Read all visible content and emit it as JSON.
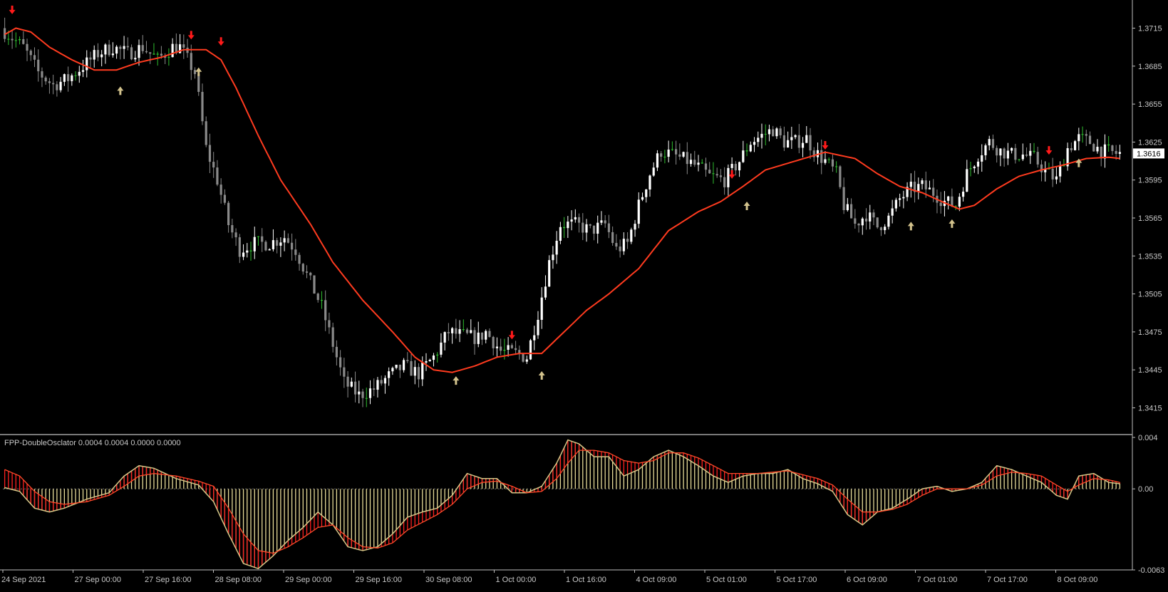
{
  "chart_data": [
    {
      "type": "candlestick",
      "ylim": [
        1.3395,
        1.3735
      ],
      "y_ticks": [
        "1.3715",
        "1.3685",
        "1.3655",
        "1.3625",
        "1.3595",
        "1.3565",
        "1.3535",
        "1.3505",
        "1.3475",
        "1.3445",
        "1.3415"
      ],
      "current_price": "1.3616",
      "x_labels": [
        "24 Sep 2021",
        "27 Sep 00:00",
        "27 Sep 16:00",
        "28 Sep 08:00",
        "29 Sep 00:00",
        "29 Sep 16:00",
        "30 Sep 08:00",
        "1 Oct 00:00",
        "1 Oct 16:00",
        "4 Oct 09:00",
        "5 Oct 01:00",
        "5 Oct 17:00",
        "6 Oct 09:00",
        "7 Oct 01:00",
        "7 Oct 17:00",
        "8 Oct 09:00"
      ],
      "price_path": [
        [
          0,
          1.3715
        ],
        [
          6,
          1.37
        ],
        [
          10,
          1.368
        ],
        [
          14,
          1.367
        ],
        [
          18,
          1.3675
        ],
        [
          22,
          1.3685
        ],
        [
          26,
          1.3695
        ],
        [
          30,
          1.37
        ],
        [
          34,
          1.3695
        ],
        [
          38,
          1.37
        ],
        [
          42,
          1.369
        ],
        [
          46,
          1.37
        ],
        [
          48,
          1.37
        ],
        [
          52,
          1.368
        ],
        [
          55,
          1.362
        ],
        [
          58,
          1.3595
        ],
        [
          61,
          1.356
        ],
        [
          64,
          1.354
        ],
        [
          68,
          1.3545
        ],
        [
          72,
          1.3545
        ],
        [
          76,
          1.355
        ],
        [
          79,
          1.354
        ],
        [
          82,
          1.352
        ],
        [
          86,
          1.3495
        ],
        [
          89,
          1.3465
        ],
        [
          92,
          1.3435
        ],
        [
          96,
          1.3425
        ],
        [
          100,
          1.343
        ],
        [
          104,
          1.344
        ],
        [
          108,
          1.3448
        ],
        [
          112,
          1.3442
        ],
        [
          116,
          1.3455
        ],
        [
          120,
          1.3475
        ],
        [
          124,
          1.3472
        ],
        [
          128,
          1.347
        ],
        [
          130,
          1.3475
        ],
        [
          134,
          1.346
        ],
        [
          138,
          1.3458
        ],
        [
          141,
          1.3455
        ],
        [
          144,
          1.349
        ],
        [
          147,
          1.353
        ],
        [
          150,
          1.356
        ],
        [
          154,
          1.356
        ],
        [
          158,
          1.3555
        ],
        [
          162,
          1.356
        ],
        [
          165,
          1.354
        ],
        [
          168,
          1.3545
        ],
        [
          171,
          1.3575
        ],
        [
          174,
          1.36
        ],
        [
          177,
          1.3618
        ],
        [
          180,
          1.3615
        ],
        [
          184,
          1.361
        ],
        [
          187,
          1.3605
        ],
        [
          190,
          1.3598
        ],
        [
          194,
          1.3595
        ],
        [
          198,
          1.361
        ],
        [
          201,
          1.3625
        ],
        [
          204,
          1.363
        ],
        [
          207,
          1.3635
        ],
        [
          210,
          1.3625
        ],
        [
          213,
          1.3625
        ],
        [
          216,
          1.3628
        ],
        [
          218,
          1.3618
        ],
        [
          221,
          1.361
        ],
        [
          224,
          1.36
        ],
        [
          226,
          1.3575
        ],
        [
          229,
          1.356
        ],
        [
          232,
          1.3568
        ],
        [
          235,
          1.3558
        ],
        [
          238,
          1.3565
        ],
        [
          241,
          1.358
        ],
        [
          244,
          1.3588
        ],
        [
          247,
          1.359
        ],
        [
          250,
          1.3585
        ],
        [
          253,
          1.3578
        ],
        [
          256,
          1.3575
        ],
        [
          259,
          1.36
        ],
        [
          262,
          1.3615
        ],
        [
          265,
          1.3625
        ],
        [
          268,
          1.3618
        ],
        [
          271,
          1.3615
        ],
        [
          274,
          1.3615
        ],
        [
          277,
          1.3612
        ],
        [
          280,
          1.3602
        ],
        [
          283,
          1.3595
        ],
        [
          286,
          1.362
        ],
        [
          289,
          1.3628
        ],
        [
          292,
          1.3625
        ],
        [
          295,
          1.3618
        ],
        [
          299,
          1.3616
        ]
      ],
      "ma_path": [
        [
          0,
          1.371
        ],
        [
          3,
          1.3715
        ],
        [
          7,
          1.3712
        ],
        [
          12,
          1.37
        ],
        [
          18,
          1.369
        ],
        [
          24,
          1.3682
        ],
        [
          30,
          1.3682
        ],
        [
          36,
          1.3688
        ],
        [
          42,
          1.3692
        ],
        [
          48,
          1.3698
        ],
        [
          54,
          1.3698
        ],
        [
          58,
          1.369
        ],
        [
          62,
          1.3668
        ],
        [
          68,
          1.363
        ],
        [
          74,
          1.3595
        ],
        [
          82,
          1.356
        ],
        [
          88,
          1.353
        ],
        [
          96,
          1.35
        ],
        [
          104,
          1.3475
        ],
        [
          110,
          1.3455
        ],
        [
          115,
          1.3445
        ],
        [
          120,
          1.3443
        ],
        [
          126,
          1.3448
        ],
        [
          132,
          1.3455
        ],
        [
          138,
          1.3458
        ],
        [
          144,
          1.3458
        ],
        [
          150,
          1.3475
        ],
        [
          156,
          1.3492
        ],
        [
          162,
          1.3505
        ],
        [
          170,
          1.3525
        ],
        [
          178,
          1.3555
        ],
        [
          186,
          1.357
        ],
        [
          192,
          1.3578
        ],
        [
          198,
          1.359
        ],
        [
          204,
          1.3603
        ],
        [
          212,
          1.361
        ],
        [
          220,
          1.3617
        ],
        [
          228,
          1.3612
        ],
        [
          234,
          1.36
        ],
        [
          240,
          1.359
        ],
        [
          246,
          1.3585
        ],
        [
          252,
          1.3577
        ],
        [
          256,
          1.3572
        ],
        [
          260,
          1.3575
        ],
        [
          266,
          1.3588
        ],
        [
          272,
          1.3598
        ],
        [
          278,
          1.3603
        ],
        [
          284,
          1.3607
        ],
        [
          290,
          1.3612
        ],
        [
          296,
          1.3613
        ],
        [
          299,
          1.3612
        ]
      ],
      "down_arrows": [
        [
          2,
          1.373
        ],
        [
          50,
          1.371
        ],
        [
          58,
          1.3705
        ],
        [
          136,
          1.3473
        ],
        [
          195,
          1.36
        ],
        [
          220,
          1.3623
        ],
        [
          280,
          1.3619
        ]
      ],
      "up_arrows": [
        [
          31,
          1.3665
        ],
        [
          52,
          1.368
        ],
        [
          121,
          1.3436
        ],
        [
          144,
          1.344
        ],
        [
          199,
          1.3574
        ],
        [
          243,
          1.3558
        ],
        [
          254,
          1.356
        ],
        [
          288,
          1.3608
        ]
      ]
    },
    {
      "type": "oscillator",
      "title": "FPP-DoubleOsclator 0.0004 0.0004 0.0000 0.0000",
      "ylim": [
        -0.0063,
        0.004
      ],
      "y_ticks": [
        "0.004",
        "0.00",
        "-0.0063"
      ],
      "main_path": [
        [
          0,
          0.0001
        ],
        [
          4,
          -0.0002
        ],
        [
          8,
          -0.0015
        ],
        [
          12,
          -0.0018
        ],
        [
          16,
          -0.0015
        ],
        [
          22,
          -0.0008
        ],
        [
          28,
          -0.0003
        ],
        [
          32,
          0.001
        ],
        [
          36,
          0.0018
        ],
        [
          40,
          0.0016
        ],
        [
          46,
          0.0008
        ],
        [
          52,
          0.0003
        ],
        [
          56,
          -0.001
        ],
        [
          60,
          -0.0035
        ],
        [
          64,
          -0.0058
        ],
        [
          68,
          -0.0062
        ],
        [
          72,
          -0.0052
        ],
        [
          76,
          -0.004
        ],
        [
          80,
          -0.003
        ],
        [
          84,
          -0.0018
        ],
        [
          88,
          -0.0028
        ],
        [
          92,
          -0.0045
        ],
        [
          96,
          -0.0048
        ],
        [
          100,
          -0.0045
        ],
        [
          104,
          -0.0035
        ],
        [
          108,
          -0.0022
        ],
        [
          112,
          -0.0018
        ],
        [
          116,
          -0.0015
        ],
        [
          120,
          -0.0005
        ],
        [
          124,
          0.0012
        ],
        [
          128,
          0.0008
        ],
        [
          132,
          0.0008
        ],
        [
          136,
          -0.0003
        ],
        [
          140,
          -0.0003
        ],
        [
          144,
          0.0002
        ],
        [
          148,
          0.002
        ],
        [
          151,
          0.0038
        ],
        [
          154,
          0.0035
        ],
        [
          158,
          0.0025
        ],
        [
          162,
          0.0025
        ],
        [
          166,
          0.001
        ],
        [
          170,
          0.0015
        ],
        [
          174,
          0.0025
        ],
        [
          178,
          0.003
        ],
        [
          182,
          0.0025
        ],
        [
          186,
          0.0018
        ],
        [
          190,
          0.001
        ],
        [
          194,
          0.0005
        ],
        [
          198,
          0.001
        ],
        [
          202,
          0.0012
        ],
        [
          206,
          0.0012
        ],
        [
          210,
          0.0015
        ],
        [
          214,
          0.0008
        ],
        [
          218,
          0.0004
        ],
        [
          222,
          -0.0002
        ],
        [
          226,
          -0.002
        ],
        [
          230,
          -0.0028
        ],
        [
          234,
          -0.0018
        ],
        [
          238,
          -0.0015
        ],
        [
          242,
          -0.0008
        ],
        [
          246,
          0.0
        ],
        [
          250,
          0.0002
        ],
        [
          254,
          -0.0002
        ],
        [
          258,
          0.0
        ],
        [
          262,
          0.0005
        ],
        [
          266,
          0.0018
        ],
        [
          270,
          0.0015
        ],
        [
          274,
          0.001
        ],
        [
          278,
          0.0005
        ],
        [
          282,
          -0.0005
        ],
        [
          285,
          -0.0008
        ],
        [
          288,
          0.001
        ],
        [
          292,
          0.0012
        ],
        [
          296,
          0.0005
        ],
        [
          299,
          0.0004
        ]
      ],
      "signal_path": [
        [
          0,
          0.0015
        ],
        [
          4,
          0.001
        ],
        [
          8,
          -0.0002
        ],
        [
          12,
          -0.001
        ],
        [
          16,
          -0.0012
        ],
        [
          22,
          -0.001
        ],
        [
          28,
          -0.0005
        ],
        [
          32,
          0.0002
        ],
        [
          36,
          0.001
        ],
        [
          40,
          0.0012
        ],
        [
          46,
          0.001
        ],
        [
          52,
          0.0006
        ],
        [
          56,
          0.0002
        ],
        [
          60,
          -0.0015
        ],
        [
          64,
          -0.0035
        ],
        [
          68,
          -0.0048
        ],
        [
          72,
          -0.005
        ],
        [
          76,
          -0.0045
        ],
        [
          80,
          -0.0038
        ],
        [
          84,
          -0.003
        ],
        [
          88,
          -0.0028
        ],
        [
          92,
          -0.0038
        ],
        [
          96,
          -0.0045
        ],
        [
          100,
          -0.0046
        ],
        [
          104,
          -0.0042
        ],
        [
          108,
          -0.0032
        ],
        [
          112,
          -0.0026
        ],
        [
          116,
          -0.002
        ],
        [
          120,
          -0.0012
        ],
        [
          124,
          0.0
        ],
        [
          128,
          0.0005
        ],
        [
          132,
          0.0006
        ],
        [
          136,
          0.0002
        ],
        [
          140,
          -0.0003
        ],
        [
          144,
          -0.0002
        ],
        [
          148,
          0.0008
        ],
        [
          151,
          0.002
        ],
        [
          154,
          0.003
        ],
        [
          158,
          0.003
        ],
        [
          162,
          0.0028
        ],
        [
          166,
          0.0022
        ],
        [
          170,
          0.002
        ],
        [
          174,
          0.0022
        ],
        [
          178,
          0.0028
        ],
        [
          182,
          0.0028
        ],
        [
          186,
          0.0024
        ],
        [
          190,
          0.0018
        ],
        [
          194,
          0.0012
        ],
        [
          198,
          0.0012
        ],
        [
          202,
          0.0012
        ],
        [
          206,
          0.0013
        ],
        [
          210,
          0.0014
        ],
        [
          214,
          0.0011
        ],
        [
          218,
          0.0008
        ],
        [
          222,
          0.0003
        ],
        [
          226,
          -0.0008
        ],
        [
          230,
          -0.0018
        ],
        [
          234,
          -0.0018
        ],
        [
          238,
          -0.0016
        ],
        [
          242,
          -0.0012
        ],
        [
          246,
          -0.0005
        ],
        [
          250,
          0.0
        ],
        [
          254,
          0.0
        ],
        [
          258,
          0.0
        ],
        [
          262,
          0.0003
        ],
        [
          266,
          0.001
        ],
        [
          270,
          0.0013
        ],
        [
          274,
          0.0012
        ],
        [
          278,
          0.001
        ],
        [
          282,
          0.0003
        ],
        [
          285,
          -0.0002
        ],
        [
          288,
          0.0003
        ],
        [
          292,
          0.0008
        ],
        [
          296,
          0.0007
        ],
        [
          299,
          0.0005
        ]
      ]
    }
  ],
  "colors": {
    "background": "#000000",
    "axis": "#c0c0c0",
    "text": "#c8c8c8",
    "candle_up": "#ffffff",
    "candle_down": "#8a8a8a",
    "doji": "#2fbf2f",
    "ma_line": "#ff3b1f",
    "arrow_down": "#ff1a1a",
    "arrow_up": "#d2c28c",
    "osc_hist": "#e8dc98",
    "osc_main": "#d6c888",
    "osc_fill": "#ff2020",
    "osc_signal": "#ff4a2a",
    "price_box_bg": "#ffffff",
    "price_box_fg": "#000000"
  }
}
